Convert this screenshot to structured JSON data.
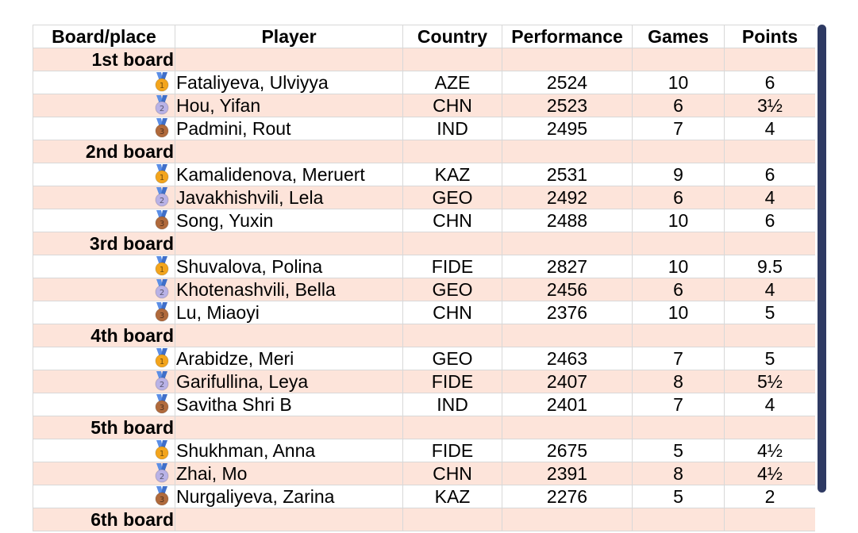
{
  "columns": [
    "Board/place",
    "Player",
    "Country",
    "Performance",
    "Games",
    "Points"
  ],
  "colors": {
    "section_bg": "#fde4da",
    "gold": "#f3a51d",
    "silver": "#b9b2e6",
    "bronze": "#b06a3c",
    "scrollbar": "#2e3a63"
  },
  "sections": [
    {
      "board": "1st board",
      "rows": [
        {
          "medal": "gold-medal-icon",
          "player": "Fataliyeva, Ulviyya",
          "country": "AZE",
          "performance": "2524",
          "games": "10",
          "points": "6"
        },
        {
          "medal": "silver-medal-icon",
          "player": "Hou, Yifan",
          "country": "CHN",
          "performance": "2523",
          "games": "6",
          "points": "3½"
        },
        {
          "medal": "bronze-medal-icon",
          "player": "Padmini, Rout",
          "country": "IND",
          "performance": "2495",
          "games": "7",
          "points": "4"
        }
      ]
    },
    {
      "board": "2nd board",
      "rows": [
        {
          "medal": "gold-medal-icon",
          "player": "Kamalidenova, Meruert",
          "country": "KAZ",
          "performance": "2531",
          "games": "9",
          "points": "6"
        },
        {
          "medal": "silver-medal-icon",
          "player": "Javakhishvili, Lela",
          "country": "GEO",
          "performance": "2492",
          "games": "6",
          "points": "4"
        },
        {
          "medal": "bronze-medal-icon",
          "player": "Song, Yuxin",
          "country": "CHN",
          "performance": "2488",
          "games": "10",
          "points": "6"
        }
      ]
    },
    {
      "board": "3rd board",
      "rows": [
        {
          "medal": "gold-medal-icon",
          "player": "Shuvalova, Polina",
          "country": "FIDE",
          "performance": "2827",
          "games": "10",
          "points": "9.5"
        },
        {
          "medal": "silver-medal-icon",
          "player": "Khotenashvili, Bella",
          "country": "GEO",
          "performance": "2456",
          "games": "6",
          "points": "4"
        },
        {
          "medal": "bronze-medal-icon",
          "player": "Lu, Miaoyi",
          "country": "CHN",
          "performance": "2376",
          "games": "10",
          "points": "5"
        }
      ]
    },
    {
      "board": "4th board",
      "rows": [
        {
          "medal": "gold-medal-icon",
          "player": "Arabidze, Meri",
          "country": "GEO",
          "performance": "2463",
          "games": "7",
          "points": "5"
        },
        {
          "medal": "silver-medal-icon",
          "player": "Garifullina, Leya",
          "country": "FIDE",
          "performance": "2407",
          "games": "8",
          "points": "5½"
        },
        {
          "medal": "bronze-medal-icon",
          "player": "Savitha Shri B",
          "country": "IND",
          "performance": "2401",
          "games": "7",
          "points": "4"
        }
      ]
    },
    {
      "board": "5th board",
      "rows": [
        {
          "medal": "gold-medal-icon",
          "player": "Shukhman, Anna",
          "country": "FIDE",
          "performance": "2675",
          "games": "5",
          "points": "4½"
        },
        {
          "medal": "silver-medal-icon",
          "player": "Zhai, Mo",
          "country": "CHN",
          "performance": "2391",
          "games": "8",
          "points": "4½"
        },
        {
          "medal": "bronze-medal-icon",
          "player": "Nurgaliyeva, Zarina",
          "country": "KAZ",
          "performance": "2276",
          "games": "5",
          "points": "2"
        }
      ]
    },
    {
      "board": "6th board",
      "rows": []
    }
  ]
}
